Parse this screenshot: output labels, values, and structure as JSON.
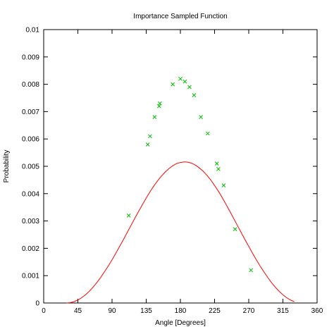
{
  "chart_data": {
    "type": "line",
    "title": "Importance Sampled Function",
    "xlabel": "Angle [Degrees]",
    "ylabel": "Probability",
    "xlim": [
      0,
      360
    ],
    "ylim": [
      0,
      0.01
    ],
    "x_ticks": [
      0,
      45,
      90,
      135,
      180,
      225,
      270,
      315,
      360
    ],
    "x_tick_labels": [
      "0",
      "45",
      "90",
      "135",
      "180",
      "225",
      "270",
      "315",
      "360"
    ],
    "y_ticks": [
      0,
      0.001,
      0.002,
      0.003,
      0.004,
      0.005,
      0.006,
      0.007,
      0.008,
      0.009,
      0.01
    ],
    "y_tick_labels": [
      "0",
      "0.001",
      "0.002",
      "0.003",
      "0.004",
      "0.005",
      "0.006",
      "0.007",
      "0.008",
      "0.009",
      "0.01"
    ],
    "grid": false,
    "colors": {
      "curve": "#ff0000",
      "samples": "#00c000"
    },
    "series": [
      {
        "type": "line",
        "x": [
          30,
          35,
          40,
          45,
          50,
          55,
          60,
          65,
          70,
          75,
          80,
          85,
          90,
          95,
          100,
          105,
          110,
          115,
          120,
          125,
          130,
          135,
          140,
          145,
          150,
          155,
          160,
          165,
          170,
          175,
          180,
          185,
          190,
          195,
          200,
          205,
          210,
          215,
          220,
          225,
          230,
          235,
          240,
          245,
          250,
          255,
          260,
          265,
          270,
          275,
          280,
          285,
          290,
          295,
          300,
          305,
          310,
          315,
          320,
          325,
          330
        ],
        "y": [
          0,
          1.22e-05,
          4.87e-05,
          0.000109,
          0.000193,
          0.0003,
          0.000429,
          0.000578,
          0.000747,
          0.000933,
          0.00114,
          0.00135,
          0.00158,
          0.00182,
          0.00207,
          0.00232,
          0.00258,
          0.00284,
          0.0031,
          0.00335,
          0.0036,
          0.00384,
          0.00407,
          0.00428,
          0.00447,
          0.00464,
          0.00479,
          0.00492,
          0.00502,
          0.0051,
          0.00514,
          0.00516,
          0.00515,
          0.00511,
          0.00504,
          0.00494,
          0.00482,
          0.00467,
          0.0045,
          0.0043,
          0.00409,
          0.00386,
          0.00361,
          0.00336,
          0.0031,
          0.00284,
          0.00258,
          0.00232,
          0.00207,
          0.00182,
          0.00158,
          0.00135,
          0.00114,
          0.000934,
          0.000747,
          0.000578,
          0.000429,
          0.0003,
          0.000193,
          0.000109,
          4.87e-05
        ]
      },
      {
        "type": "scatter",
        "x": [
          112,
          137,
          140,
          146,
          152,
          153,
          170,
          180,
          186,
          192,
          198,
          207,
          216,
          228,
          230,
          237,
          252,
          273
        ],
        "y": [
          0.0032,
          0.0058,
          0.0061,
          0.0068,
          0.0072,
          0.0073,
          0.008,
          0.0082,
          0.0081,
          0.0079,
          0.0076,
          0.0068,
          0.0062,
          0.0051,
          0.0049,
          0.0043,
          0.0027,
          0.0012
        ]
      }
    ]
  }
}
